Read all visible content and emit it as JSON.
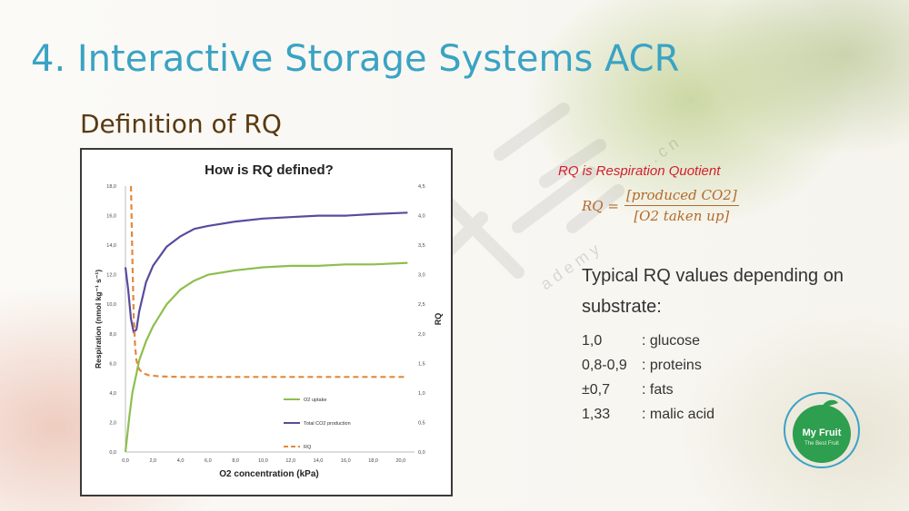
{
  "slide": {
    "title": "4. Interactive Storage Systems ACR",
    "subtitle": "Definition of RQ"
  },
  "definition": {
    "heading": "RQ is Respiration Quotient",
    "formula_lhs": "RQ =",
    "formula_numerator": "[produced CO2]",
    "formula_denominator": "[O2 taken up]",
    "typical_text": "Typical RQ values depending on substrate:",
    "values": [
      {
        "value": "1,0",
        "substrate": ": glucose"
      },
      {
        "value": "0,8-0,9",
        "substrate": ": proteins"
      },
      {
        "value": "±0,7",
        "substrate": ": fats"
      },
      {
        "value": "1,33",
        "substrate": ": malic acid"
      }
    ]
  },
  "logo": {
    "name": "My Fruit",
    "tagline": "The Best Fruit",
    "color": "#2e9e4f"
  },
  "colors": {
    "o2": "#8dbf4d",
    "co2": "#5b4a9c",
    "rq": "#e08a3c",
    "title": "#3aa3c4"
  },
  "chart_data": {
    "type": "line",
    "title": "How is RQ defined?",
    "xlabel": "O2 concentration (kPa)",
    "ylabel": "Respiration (nmol kg⁻¹ s⁻¹)",
    "y2label": "RQ",
    "xlim": [
      0,
      21
    ],
    "ylim": [
      0,
      18
    ],
    "y2lim": [
      0,
      4.5
    ],
    "x_ticks": [
      "0,0",
      "2,0",
      "4,0",
      "6,0",
      "8,0",
      "10,0",
      "12,0",
      "14,0",
      "16,0",
      "18,0",
      "20,0"
    ],
    "y_ticks": [
      "0,0",
      "2,0",
      "4,0",
      "6,0",
      "8,0",
      "10,0",
      "12,0",
      "14,0",
      "16,0",
      "18,0"
    ],
    "y2_ticks": [
      "0,0",
      "0,5",
      "1,0",
      "1,5",
      "2,0",
      "2,5",
      "3,0",
      "3,5",
      "4,0",
      "4,5"
    ],
    "legend_position": "bottom-right",
    "series": [
      {
        "name": "O2 uptake",
        "axis": "left",
        "style": "solid",
        "x": [
          0,
          0.3,
          0.5,
          0.8,
          1,
          1.5,
          2,
          3,
          4,
          5,
          6,
          8,
          10,
          12,
          14,
          16,
          18,
          20.5
        ],
        "y": [
          0,
          2.5,
          4,
          5.3,
          6.2,
          7.5,
          8.5,
          10,
          11,
          11.6,
          12,
          12.3,
          12.5,
          12.6,
          12.6,
          12.7,
          12.7,
          12.8
        ]
      },
      {
        "name": "Total CO2 production",
        "axis": "left",
        "style": "solid",
        "x": [
          0,
          0.2,
          0.4,
          0.6,
          0.8,
          1,
          1.5,
          2,
          3,
          4,
          5,
          6,
          8,
          10,
          12,
          14,
          16,
          18,
          20.5
        ],
        "y": [
          12.5,
          11,
          9,
          8.1,
          8.3,
          9.5,
          11.5,
          12.6,
          13.9,
          14.6,
          15.1,
          15.3,
          15.6,
          15.8,
          15.9,
          16,
          16,
          16.1,
          16.2
        ]
      },
      {
        "name": "RQ",
        "axis": "right",
        "style": "dashed",
        "x": [
          0.4,
          0.5,
          0.6,
          0.7,
          0.8,
          1,
          1.3,
          1.7,
          2.5,
          4,
          6,
          10,
          15,
          20.5
        ],
        "y": [
          4.5,
          3.3,
          2.3,
          1.8,
          1.55,
          1.4,
          1.33,
          1.3,
          1.28,
          1.27,
          1.27,
          1.27,
          1.27,
          1.27
        ]
      }
    ]
  }
}
